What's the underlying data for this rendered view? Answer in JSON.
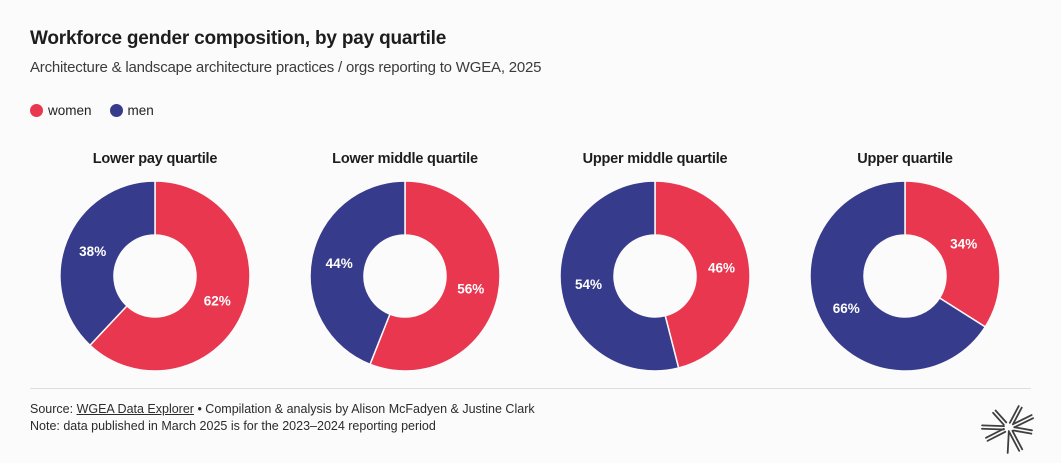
{
  "chart_data": {
    "type": "pie",
    "variant": "donut",
    "title": "Workforce gender composition, by pay quartile",
    "subtitle": "Architecture & landscape architecture practices / orgs reporting to WGEA, 2025",
    "unit": "%",
    "legend_position": "top-left",
    "legend": [
      {
        "name": "women",
        "color": "#e9374f"
      },
      {
        "name": "men",
        "color": "#373b8c"
      }
    ],
    "label_color": "#ffffff",
    "charts": [
      {
        "title": "Lower pay quartile",
        "slices": [
          {
            "name": "women",
            "value": 62
          },
          {
            "name": "men",
            "value": 38
          }
        ]
      },
      {
        "title": "Lower middle quartile",
        "slices": [
          {
            "name": "women",
            "value": 56
          },
          {
            "name": "men",
            "value": 44
          }
        ]
      },
      {
        "title": "Upper middle quartile",
        "slices": [
          {
            "name": "women",
            "value": 46
          },
          {
            "name": "men",
            "value": 54
          }
        ]
      },
      {
        "title": "Upper quartile",
        "slices": [
          {
            "name": "women",
            "value": 34
          },
          {
            "name": "men",
            "value": 66
          }
        ]
      }
    ]
  },
  "footer": {
    "source_prefix": "Source: ",
    "source_link": "WGEA Data Explorer",
    "source_separator": " • ",
    "source_credit": "Compilation & analysis by Alison McFadyen & Justine Clark",
    "note": "Note: data published in March 2025 is for the 2023–2024 reporting period"
  },
  "icons": {
    "legend_dot": "filled-circle",
    "logo": "asterisk-mark"
  },
  "colors": {
    "background": "#fbfbfb",
    "title_text": "#1d1d1d",
    "body_text": "#2b2b2b",
    "divider": "#dedede",
    "logo": "#3f3f3f"
  }
}
